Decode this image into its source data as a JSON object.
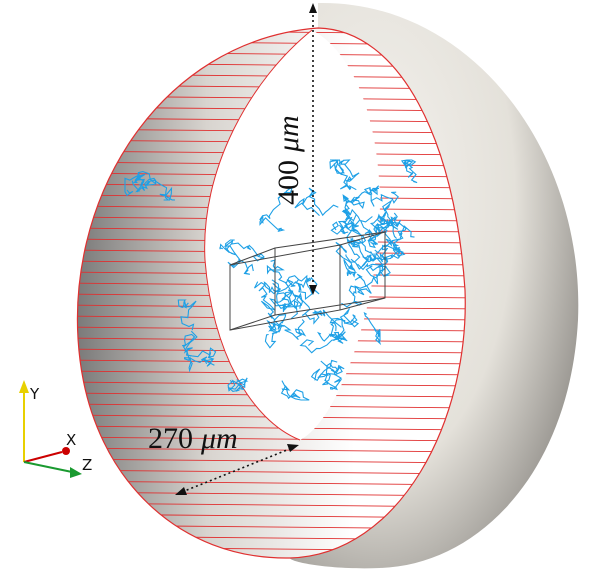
{
  "annotations": [
    {
      "value": "400",
      "unit": "μm"
    },
    {
      "value": "270",
      "unit": "μm"
    }
  ],
  "axes_triad": {
    "y": "Y",
    "x": "X",
    "z": "Z"
  }
}
